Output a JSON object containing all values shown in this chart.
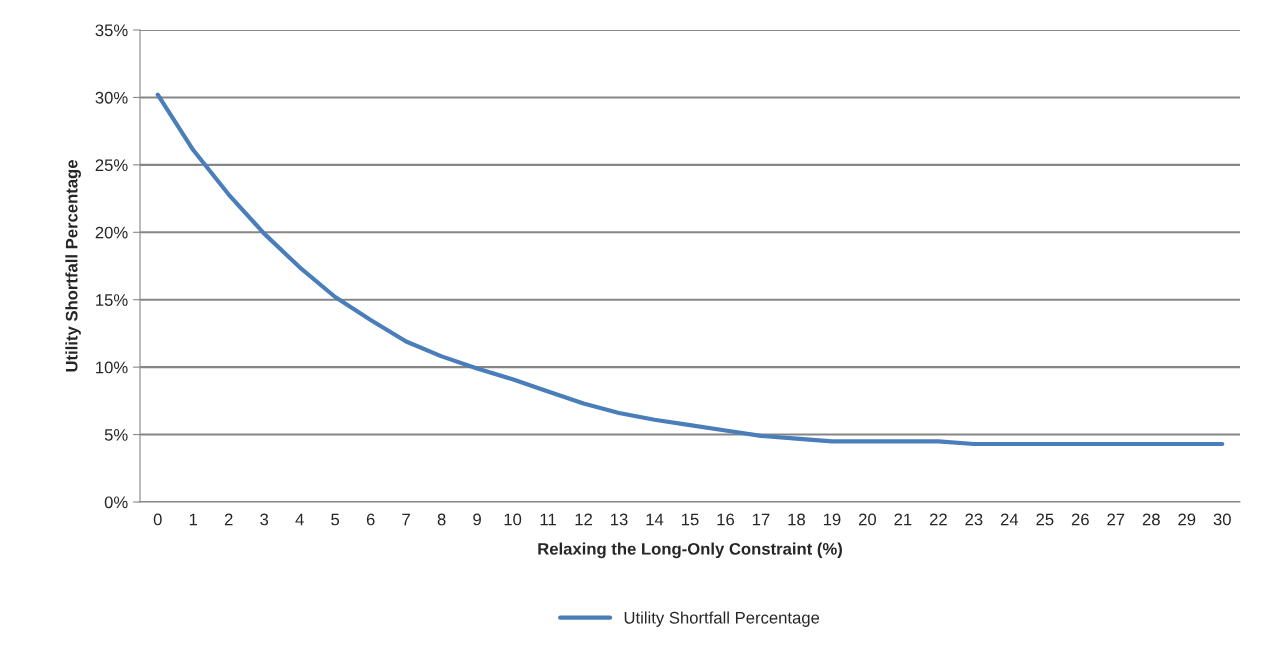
{
  "chart_data": {
    "type": "line",
    "xlabel": "Relaxing the Long-Only Constraint (%)",
    "ylabel": "Utility Shortfall Percentage",
    "categories": [
      "0",
      "1",
      "2",
      "3",
      "4",
      "5",
      "6",
      "7",
      "8",
      "9",
      "10",
      "11",
      "12",
      "13",
      "14",
      "15",
      "16",
      "17",
      "18",
      "19",
      "20",
      "21",
      "22",
      "23",
      "24",
      "25",
      "26",
      "27",
      "28",
      "29",
      "30"
    ],
    "series": [
      {
        "name": "Utility Shortfall Percentage",
        "color": "#4a7ebb",
        "values": [
          30.2,
          26.1,
          22.8,
          19.9,
          17.4,
          15.2,
          13.5,
          11.9,
          10.8,
          9.9,
          9.1,
          8.2,
          7.3,
          6.6,
          6.1,
          5.7,
          5.3,
          4.9,
          4.7,
          4.5,
          4.5,
          4.5,
          4.5,
          4.3,
          4.3,
          4.3,
          4.3,
          4.3,
          4.3,
          4.3,
          4.3
        ]
      }
    ],
    "ylim": [
      0,
      35
    ],
    "yticks": [
      {
        "value": 0,
        "label": "0%"
      },
      {
        "value": 5,
        "label": "5%"
      },
      {
        "value": 10,
        "label": "10%"
      },
      {
        "value": 15,
        "label": "15%"
      },
      {
        "value": 20,
        "label": "20%"
      },
      {
        "value": 25,
        "label": "25%"
      },
      {
        "value": 30,
        "label": "30%"
      },
      {
        "value": 35,
        "label": "35%"
      }
    ],
    "grid": "y",
    "legend": "bottom",
    "marker": "none",
    "line_style": "solid"
  }
}
